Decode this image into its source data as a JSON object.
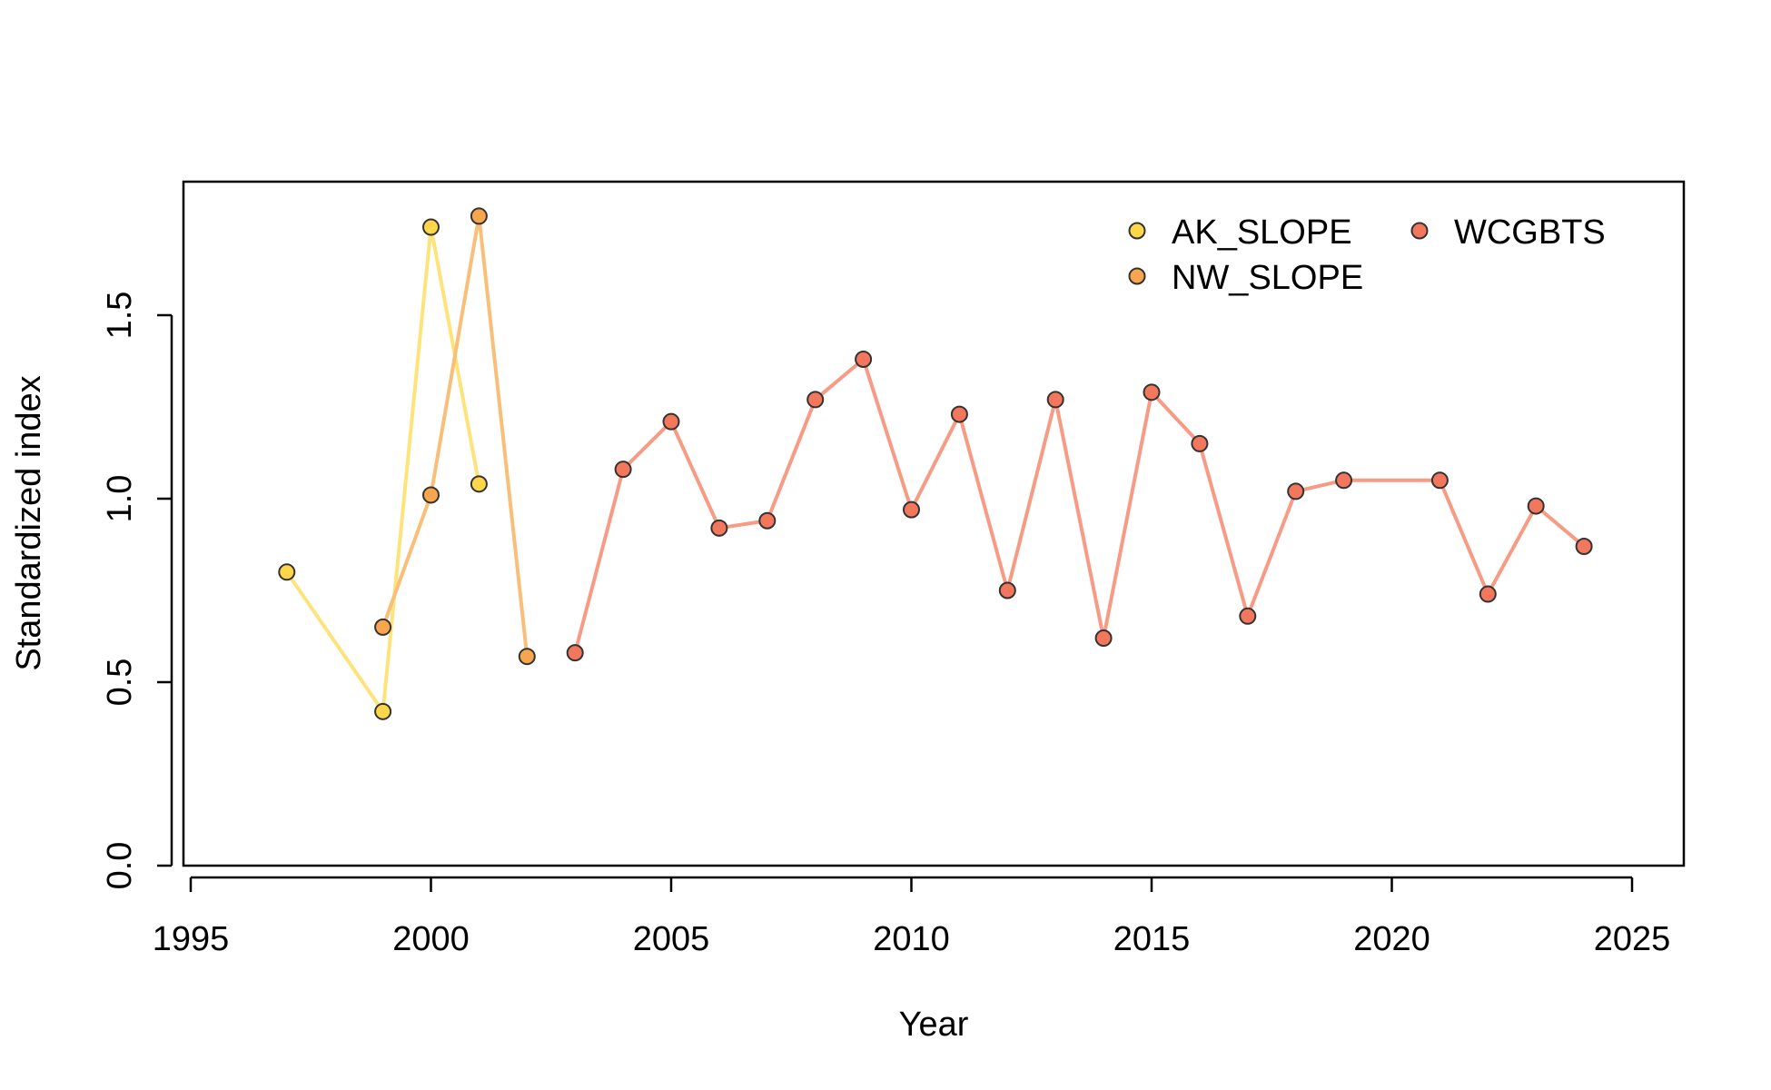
{
  "chart_data": {
    "type": "line",
    "title": "",
    "xlabel": "Year",
    "ylabel": "Standardized index",
    "xlim": [
      1995,
      2025
    ],
    "ylim": [
      0,
      1.85
    ],
    "x_ticks": [
      1995,
      2000,
      2005,
      2010,
      2015,
      2020,
      2025
    ],
    "y_ticks": [
      0.0,
      0.5,
      1.0,
      1.5
    ],
    "y_tick_labels": [
      "0.0",
      "0.5",
      "1.0",
      "1.5"
    ],
    "grid": false,
    "legend": "top-right",
    "series": [
      {
        "name": "AK_SLOPE",
        "line_color": "#fde47a",
        "point_color": "#fdd64a",
        "x": [
          1997,
          1999,
          2000,
          2001
        ],
        "y": [
          0.8,
          0.42,
          1.74,
          1.04
        ]
      },
      {
        "name": "NW_SLOPE",
        "line_color": "#f9bf78",
        "point_color": "#f8a64e",
        "x": [
          1999,
          2000,
          2001,
          2002
        ],
        "y": [
          0.65,
          1.01,
          1.77,
          0.57
        ]
      },
      {
        "name": "WCGBTS",
        "line_color": "#f79b85",
        "point_color": "#f3775d",
        "x": [
          2003,
          2004,
          2005,
          2006,
          2007,
          2008,
          2009,
          2010,
          2011,
          2012,
          2013,
          2014,
          2015,
          2016,
          2017,
          2018,
          2019,
          2021,
          2022,
          2023,
          2024
        ],
        "y": [
          0.58,
          1.08,
          1.21,
          0.92,
          0.94,
          1.27,
          1.38,
          0.97,
          1.23,
          0.75,
          1.27,
          0.62,
          1.29,
          1.15,
          0.68,
          1.02,
          1.05,
          1.05,
          0.74,
          0.98,
          0.87
        ]
      }
    ]
  }
}
